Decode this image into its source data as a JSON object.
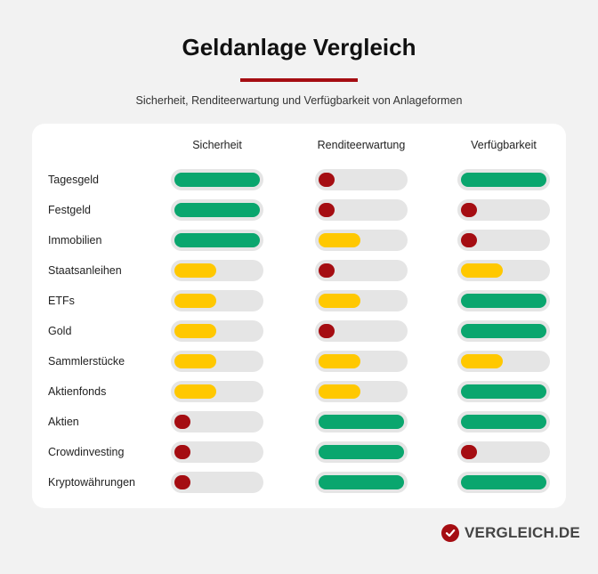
{
  "header": {
    "title": "Geldanlage Vergleich",
    "subtitle": "Sicherheit, Renditeerwartung und Verfügbarkeit von Anlageformen"
  },
  "brand": {
    "name": "VERGLEICH.DE",
    "icon": "checkmark-circle-icon",
    "color": "#a50d12"
  },
  "colors": {
    "high": "#0aa66e",
    "medium": "#ffc800",
    "low": "#a50d12",
    "track": "#e5e5e5"
  },
  "chart_data": {
    "type": "table",
    "scale": {
      "low": 1,
      "medium": 2,
      "high": 3
    },
    "columns": [
      "Sicherheit",
      "Renditeerwartung",
      "Verfügbarkeit"
    ],
    "rows": [
      {
        "label": "Tagesgeld",
        "values": [
          3,
          1,
          3
        ]
      },
      {
        "label": "Festgeld",
        "values": [
          3,
          1,
          1
        ]
      },
      {
        "label": "Immobilien",
        "values": [
          3,
          2,
          1
        ]
      },
      {
        "label": "Staatsanleihen",
        "values": [
          2,
          1,
          2
        ]
      },
      {
        "label": "ETFs",
        "values": [
          2,
          2,
          3
        ]
      },
      {
        "label": "Gold",
        "values": [
          2,
          1,
          3
        ]
      },
      {
        "label": "Sammlerstücke",
        "values": [
          2,
          2,
          2
        ]
      },
      {
        "label": "Aktienfonds",
        "values": [
          2,
          2,
          3
        ]
      },
      {
        "label": "Aktien",
        "values": [
          1,
          3,
          3
        ]
      },
      {
        "label": "Crowdinvesting",
        "values": [
          1,
          3,
          1
        ]
      },
      {
        "label": "Kryptowährungen",
        "values": [
          1,
          3,
          3
        ]
      }
    ]
  }
}
